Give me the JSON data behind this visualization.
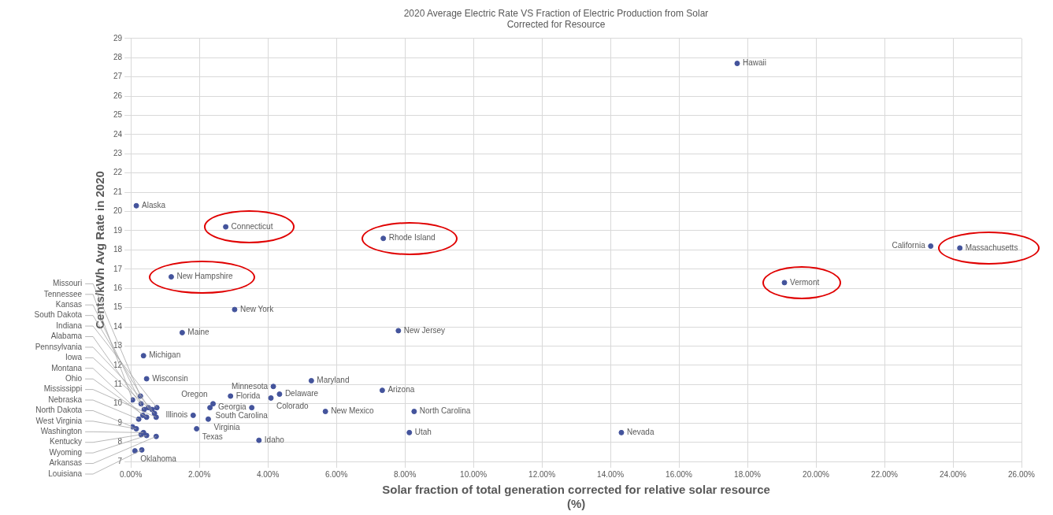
{
  "chart_data": {
    "type": "scatter",
    "title": "2020 Average Electric Rate VS Fraction of Electric Production from Solar\nCorrected for Resource",
    "xlabel": "Solar fraction of total generation corrected for relative solar resource\n(%)",
    "ylabel": "Cents/kWh Avg Rate in 2020",
    "xlim": [
      0,
      26
    ],
    "xticks": [
      {
        "value": 0,
        "label": "0.00%"
      },
      {
        "value": 2,
        "label": "2.00%"
      },
      {
        "value": 4,
        "label": "4.00%"
      },
      {
        "value": 6,
        "label": "6.00%"
      },
      {
        "value": 8,
        "label": "8.00%"
      },
      {
        "value": 10,
        "label": "10.00%"
      },
      {
        "value": 12,
        "label": "12.00%"
      },
      {
        "value": 14,
        "label": "14.00%"
      },
      {
        "value": 16,
        "label": "16.00%"
      },
      {
        "value": 18,
        "label": "18.00%"
      },
      {
        "value": 20,
        "label": "20.00%"
      },
      {
        "value": 22,
        "label": "22.00%"
      },
      {
        "value": 24,
        "label": "24.00%"
      },
      {
        "value": 26,
        "label": "26.00%"
      }
    ],
    "ylim": [
      7,
      29
    ],
    "yticks": [
      7,
      8,
      9,
      10,
      11,
      12,
      13,
      14,
      15,
      16,
      17,
      18,
      19,
      20,
      21,
      22,
      23,
      24,
      25,
      26,
      27,
      28,
      29
    ],
    "grid": true,
    "marker": "circle",
    "series": [
      {
        "color": "#44549c",
        "x": [
          17.7,
          0.16,
          2.77,
          7.37,
          23.35,
          24.2,
          1.18,
          19.08,
          3.03,
          1.5,
          7.81,
          0.37,
          0.46,
          5.27,
          4.16,
          7.34,
          4.34,
          2.91,
          4.09,
          2.31,
          3.53,
          5.68,
          8.27,
          1.82,
          2.4,
          2.26,
          1.92,
          3.74,
          8.13,
          14.32,
          0.28,
          0.05,
          0.3,
          0.39,
          0.51,
          0.69,
          0.35,
          0.46,
          0.23,
          0.74,
          0.05,
          0.16,
          0.3,
          0.37,
          0.12,
          0.32,
          0.46,
          0.74,
          0.62,
          0.76
        ],
        "values": [
          27.7,
          20.3,
          19.2,
          18.6,
          18.2,
          18.1,
          16.6,
          16.3,
          14.9,
          13.7,
          13.8,
          12.5,
          11.3,
          11.2,
          10.9,
          10.7,
          10.5,
          10.4,
          10.3,
          9.8,
          9.8,
          9.6,
          9.6,
          9.4,
          10.0,
          9.2,
          8.7,
          8.1,
          8.5,
          8.5,
          10.4,
          10.2,
          10.0,
          9.7,
          9.8,
          9.5,
          9.4,
          9.3,
          9.2,
          9.3,
          8.8,
          8.7,
          8.4,
          8.5,
          7.55,
          7.6,
          8.35,
          8.3,
          9.7,
          9.8
        ]
      }
    ],
    "annotations": [
      {
        "text": "Hawaii",
        "x": 17.7,
        "y": 27.7
      },
      {
        "text": "Alaska",
        "x": 0.16,
        "y": 20.3
      },
      {
        "text": "Connecticut",
        "x": 2.77,
        "y": 19.2
      },
      {
        "text": "Rhode Island",
        "x": 7.37,
        "y": 18.6
      },
      {
        "text": "California",
        "x": 23.35,
        "y": 18.2
      },
      {
        "text": "Massachusetts",
        "x": 24.2,
        "y": 18.1
      },
      {
        "text": "New Hampshire",
        "x": 1.18,
        "y": 16.6
      },
      {
        "text": "Vermont",
        "x": 19.08,
        "y": 16.3
      },
      {
        "text": "New York",
        "x": 3.03,
        "y": 14.9
      },
      {
        "text": "Maine",
        "x": 1.5,
        "y": 13.7
      },
      {
        "text": "New Jersey",
        "x": 7.81,
        "y": 13.8
      },
      {
        "text": "Michigan",
        "x": 0.37,
        "y": 12.5
      },
      {
        "text": "Wisconsin",
        "x": 0.46,
        "y": 11.3
      },
      {
        "text": "Maryland",
        "x": 5.27,
        "y": 11.2
      },
      {
        "text": "Minnesota",
        "x": 4.16,
        "y": 10.9
      },
      {
        "text": "Arizona",
        "x": 7.34,
        "y": 10.7
      },
      {
        "text": "Delaware",
        "x": 4.34,
        "y": 10.5
      },
      {
        "text": "Florida",
        "x": 2.91,
        "y": 10.4
      },
      {
        "text": "Colorado",
        "x": 4.09,
        "y": 10.3
      },
      {
        "text": "South Carolina",
        "x": 2.31,
        "y": 9.8
      },
      {
        "text": "Georgia",
        "x": 3.53,
        "y": 9.8
      },
      {
        "text": "New Mexico",
        "x": 5.68,
        "y": 9.6
      },
      {
        "text": "North Carolina",
        "x": 8.27,
        "y": 9.6
      },
      {
        "text": "Illinois",
        "x": 1.82,
        "y": 9.4
      },
      {
        "text": "Oregon",
        "x": 2.4,
        "y": 10.0
      },
      {
        "text": "Virginia",
        "x": 2.26,
        "y": 9.2
      },
      {
        "text": "Texas",
        "x": 1.92,
        "y": 8.7
      },
      {
        "text": "Idaho",
        "x": 3.74,
        "y": 8.1
      },
      {
        "text": "Utah",
        "x": 8.13,
        "y": 8.5
      },
      {
        "text": "Nevada",
        "x": 14.32,
        "y": 8.5
      },
      {
        "text": "Missouri",
        "x": 0.28,
        "y": 10.4
      },
      {
        "text": "Tennessee",
        "x": 0.05,
        "y": 10.2
      },
      {
        "text": "Kansas",
        "x": 0.3,
        "y": 10.0
      },
      {
        "text": "Alabama",
        "x": 0.39,
        "y": 9.7
      },
      {
        "text": "South Dakota",
        "x": 0.51,
        "y": 9.8
      },
      {
        "text": "Iowa",
        "x": 0.69,
        "y": 9.5
      },
      {
        "text": "Montana",
        "x": 0.35,
        "y": 9.4
      },
      {
        "text": "Ohio",
        "x": 0.46,
        "y": 9.3
      },
      {
        "text": "Nebraska",
        "x": 0.23,
        "y": 9.2
      },
      {
        "text": "Mississippi",
        "x": 0.74,
        "y": 9.3
      },
      {
        "text": "North Dakota",
        "x": 0.05,
        "y": 8.8
      },
      {
        "text": "West Virginia",
        "x": 0.16,
        "y": 8.7
      },
      {
        "text": "Kentucky",
        "x": 0.3,
        "y": 8.4
      },
      {
        "text": "Washington",
        "x": 0.37,
        "y": 8.5
      },
      {
        "text": "Oklahoma",
        "x": 0.12,
        "y": 7.55
      },
      {
        "text": "Louisiana",
        "x": 0.32,
        "y": 7.6
      },
      {
        "text": "Wyoming",
        "x": 0.46,
        "y": 8.35
      },
      {
        "text": "Arkansas",
        "x": 0.74,
        "y": 8.3
      },
      {
        "text": "Pennsylvania",
        "x": 0.62,
        "y": 9.7
      },
      {
        "text": "Indiana",
        "x": 0.76,
        "y": 9.8
      }
    ]
  }
}
